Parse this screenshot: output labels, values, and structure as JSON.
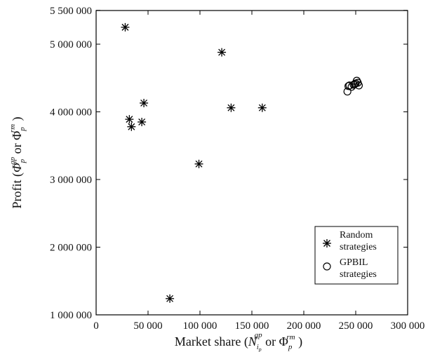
{
  "chart_data": {
    "type": "scatter",
    "xlim": [
      0,
      300000
    ],
    "ylim": [
      1000000,
      5500000
    ],
    "x_ticks": [
      0,
      50000,
      100000,
      150000,
      200000,
      250000,
      300000
    ],
    "x_tick_labels": [
      "0",
      "50 000",
      "100 000",
      "150 000",
      "200 000",
      "250 000",
      "300 000"
    ],
    "y_ticks": [
      1000000,
      2000000,
      3000000,
      4000000,
      5000000,
      5500000
    ],
    "y_tick_labels": [
      "1 000 000",
      "2 000 000",
      "3 000 000",
      "4 000 000",
      "5 000 000",
      "5 500 000"
    ],
    "grid": false,
    "legend_position": "bottom-right",
    "xlabel": {
      "main": "Market share (",
      "sym1": "N",
      "sub1": "i",
      "subsub1": "p",
      "sup1": "gp",
      "mid": " or ",
      "sym2": "Φ",
      "sub2": "p",
      "sup2": "rm",
      "end": " )"
    },
    "ylabel": {
      "main": "Profit (",
      "sym1": "Φ",
      "sub1": "p",
      "sup1": "gp",
      "mid": " or ",
      "sym2": "Φ",
      "sub2": "p",
      "sup2": "rm",
      "end": " )"
    },
    "series": [
      {
        "name": "Random strategies",
        "marker": "asterisk",
        "points": [
          {
            "x": 28000,
            "y": 5250000
          },
          {
            "x": 121000,
            "y": 4880000
          },
          {
            "x": 46000,
            "y": 4130000
          },
          {
            "x": 130000,
            "y": 4060000
          },
          {
            "x": 160000,
            "y": 4060000
          },
          {
            "x": 32000,
            "y": 3890000
          },
          {
            "x": 44000,
            "y": 3850000
          },
          {
            "x": 34000,
            "y": 3780000
          },
          {
            "x": 99000,
            "y": 3230000
          },
          {
            "x": 71000,
            "y": 1240000
          }
        ]
      },
      {
        "name": "GPBIL strategies",
        "marker": "circle",
        "points": [
          {
            "x": 242000,
            "y": 4300000
          },
          {
            "x": 243000,
            "y": 4380000
          },
          {
            "x": 244000,
            "y": 4390000
          },
          {
            "x": 246000,
            "y": 4370000
          },
          {
            "x": 248000,
            "y": 4400000
          },
          {
            "x": 250000,
            "y": 4420000
          },
          {
            "x": 251000,
            "y": 4460000
          },
          {
            "x": 252000,
            "y": 4430000
          },
          {
            "x": 253000,
            "y": 4390000
          },
          {
            "x": 249000,
            "y": 4410000
          }
        ]
      }
    ],
    "legend": {
      "line1": [
        "Random",
        "strategies"
      ],
      "line2": [
        "GPBIL",
        "strategies"
      ]
    }
  }
}
